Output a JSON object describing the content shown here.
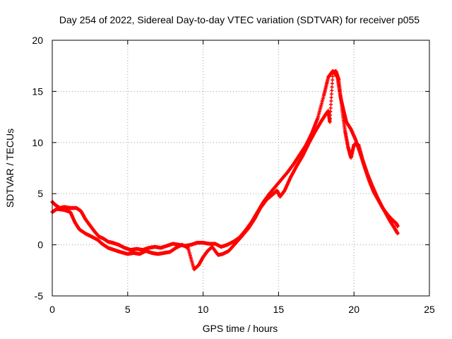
{
  "chart_data": {
    "type": "scatter",
    "title": "Day 254 of 2022, Sidereal Day-to-day VTEC variation (SDTVAR) for receiver p055",
    "xlabel": "GPS time / hours",
    "ylabel": "SDTVAR / TECUs",
    "xlim": [
      0,
      25
    ],
    "ylim": [
      -5,
      20
    ],
    "xticks": [
      0,
      5,
      10,
      15,
      20,
      25
    ],
    "xtick_labels": [
      "0",
      "5",
      "10",
      "15",
      "20",
      "25"
    ],
    "yticks": [
      -5,
      0,
      5,
      10,
      15,
      20
    ],
    "ytick_labels": [
      "-5",
      "0",
      "5",
      "10",
      "15",
      "20"
    ],
    "grid": true,
    "marker": "plus",
    "color": "#ff0000",
    "series": [
      {
        "name": "p055 main trace",
        "points": [
          [
            0.0,
            4.2
          ],
          [
            0.2,
            3.9
          ],
          [
            0.5,
            3.6
          ],
          [
            0.8,
            3.7
          ],
          [
            1.2,
            3.6
          ],
          [
            1.6,
            3.6
          ],
          [
            1.9,
            3.3
          ],
          [
            2.2,
            2.5
          ],
          [
            2.5,
            1.9
          ],
          [
            2.8,
            1.3
          ],
          [
            3.1,
            0.8
          ],
          [
            3.4,
            0.6
          ],
          [
            3.7,
            0.3
          ],
          [
            4.0,
            0.2
          ],
          [
            4.4,
            0.0
          ],
          [
            4.8,
            -0.3
          ],
          [
            5.2,
            -0.5
          ],
          [
            5.6,
            -0.4
          ],
          [
            6.0,
            -0.5
          ],
          [
            6.4,
            -0.3
          ],
          [
            6.8,
            -0.2
          ],
          [
            7.2,
            -0.3
          ],
          [
            7.6,
            -0.1
          ],
          [
            8.0,
            0.1
          ],
          [
            8.4,
            0.0
          ],
          [
            8.8,
            -0.1
          ],
          [
            9.2,
            0.0
          ],
          [
            9.6,
            0.2
          ],
          [
            10.0,
            0.2
          ],
          [
            10.4,
            0.1
          ],
          [
            10.8,
            0.1
          ],
          [
            11.2,
            -0.2
          ],
          [
            11.6,
            0.0
          ],
          [
            12.0,
            0.3
          ],
          [
            12.4,
            0.7
          ],
          [
            12.8,
            1.4
          ],
          [
            13.2,
            2.2
          ],
          [
            13.6,
            3.2
          ],
          [
            14.0,
            4.2
          ],
          [
            14.4,
            5.0
          ],
          [
            14.8,
            5.7
          ],
          [
            15.2,
            6.4
          ],
          [
            15.6,
            7.1
          ],
          [
            16.0,
            7.9
          ],
          [
            16.4,
            8.8
          ],
          [
            16.8,
            9.7
          ],
          [
            17.2,
            10.9
          ],
          [
            17.6,
            12.4
          ],
          [
            18.0,
            14.6
          ],
          [
            18.3,
            16.4
          ],
          [
            18.6,
            17.0
          ],
          [
            18.9,
            16.4
          ],
          [
            19.1,
            14.5
          ],
          [
            19.3,
            13.2
          ],
          [
            19.5,
            12.0
          ],
          [
            19.8,
            11.3
          ],
          [
            20.1,
            10.3
          ],
          [
            20.4,
            9.0
          ],
          [
            20.7,
            7.6
          ],
          [
            21.0,
            6.3
          ],
          [
            21.3,
            5.2
          ],
          [
            21.6,
            4.4
          ],
          [
            21.9,
            3.6
          ],
          [
            22.2,
            3.0
          ],
          [
            22.5,
            2.5
          ],
          [
            22.8,
            2.1
          ],
          [
            22.9,
            1.8
          ]
        ]
      },
      {
        "name": "p055 secondary trace",
        "points": [
          [
            0.0,
            3.2
          ],
          [
            0.3,
            3.5
          ],
          [
            0.8,
            3.4
          ],
          [
            1.2,
            3.2
          ],
          [
            1.5,
            2.2
          ],
          [
            1.8,
            1.5
          ],
          [
            2.2,
            1.1
          ],
          [
            2.6,
            0.8
          ],
          [
            3.0,
            0.5
          ],
          [
            3.3,
            0.1
          ],
          [
            3.7,
            -0.3
          ],
          [
            4.1,
            -0.5
          ],
          [
            4.5,
            -0.7
          ],
          [
            5.0,
            -0.9
          ],
          [
            5.4,
            -0.8
          ],
          [
            5.8,
            -0.9
          ],
          [
            6.2,
            -0.6
          ],
          [
            6.6,
            -0.8
          ],
          [
            7.0,
            -0.9
          ],
          [
            7.4,
            -0.8
          ],
          [
            7.8,
            -0.7
          ],
          [
            8.2,
            -0.3
          ],
          [
            8.6,
            0.0
          ],
          [
            9.0,
            -0.3
          ],
          [
            9.4,
            -2.4
          ],
          [
            9.7,
            -2.0
          ],
          [
            10.0,
            -1.2
          ],
          [
            10.3,
            -0.6
          ],
          [
            10.6,
            -0.2
          ],
          [
            11.0,
            -1.0
          ],
          [
            11.3,
            -0.9
          ],
          [
            11.7,
            -0.6
          ],
          [
            12.0,
            -0.1
          ],
          [
            12.3,
            0.4
          ],
          [
            12.6,
            0.9
          ],
          [
            13.0,
            1.6
          ],
          [
            13.4,
            2.5
          ],
          [
            13.8,
            3.6
          ],
          [
            14.2,
            4.4
          ],
          [
            14.6,
            4.9
          ],
          [
            14.9,
            5.3
          ],
          [
            15.1,
            4.7
          ],
          [
            15.4,
            5.3
          ],
          [
            15.8,
            6.6
          ],
          [
            16.2,
            7.7
          ],
          [
            16.6,
            8.7
          ],
          [
            17.0,
            9.9
          ],
          [
            17.4,
            11.0
          ],
          [
            17.8,
            12.0
          ],
          [
            18.1,
            12.7
          ],
          [
            18.3,
            13.1
          ],
          [
            18.4,
            12.0
          ],
          [
            18.6,
            16.8
          ],
          [
            18.8,
            17.0
          ],
          [
            19.0,
            16.1
          ],
          [
            19.2,
            13.4
          ],
          [
            19.4,
            11.2
          ],
          [
            19.6,
            9.6
          ],
          [
            19.8,
            8.5
          ],
          [
            20.0,
            9.8
          ],
          [
            20.3,
            9.8
          ],
          [
            20.6,
            8.2
          ],
          [
            20.9,
            6.9
          ],
          [
            21.2,
            5.8
          ],
          [
            21.5,
            4.8
          ],
          [
            21.8,
            3.9
          ],
          [
            22.1,
            3.1
          ],
          [
            22.4,
            2.3
          ],
          [
            22.7,
            1.6
          ],
          [
            22.9,
            1.1
          ]
        ]
      }
    ]
  }
}
